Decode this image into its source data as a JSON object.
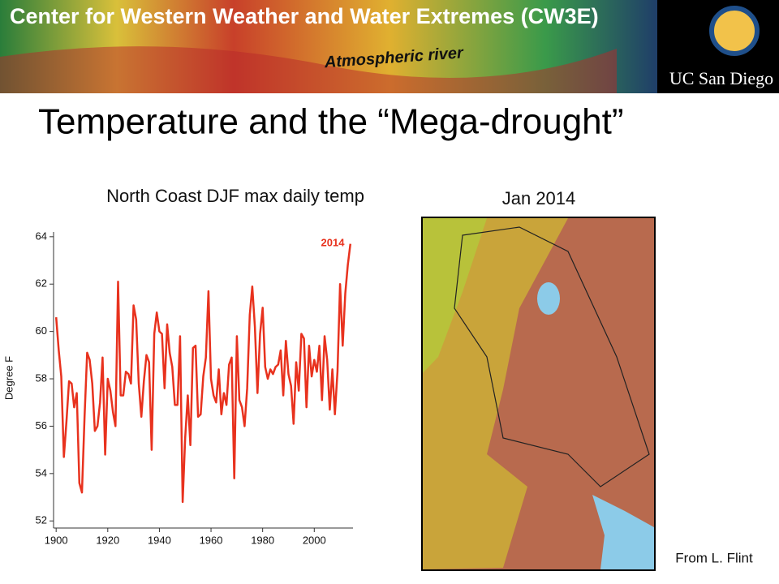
{
  "banner": {
    "title": "Center for Western Weather and Water Extremes (CW3E)",
    "label": "Atmospheric river",
    "logo": "UC San Diego"
  },
  "slide_title": "Temperature and the “Mega-drought”",
  "map_title": "Jan 2014",
  "credit": "From L. Flint",
  "chart_data": {
    "type": "line",
    "title": "North Coast DJF max daily temp",
    "y_label": "Degree F",
    "annotation": "2014",
    "x": [
      1900,
      1901,
      1902,
      1903,
      1904,
      1905,
      1906,
      1907,
      1908,
      1909,
      1910,
      1911,
      1912,
      1913,
      1914,
      1915,
      1916,
      1917,
      1918,
      1919,
      1920,
      1921,
      1922,
      1923,
      1924,
      1925,
      1926,
      1927,
      1928,
      1929,
      1930,
      1931,
      1932,
      1933,
      1934,
      1935,
      1936,
      1937,
      1938,
      1939,
      1940,
      1941,
      1942,
      1943,
      1944,
      1945,
      1946,
      1947,
      1948,
      1949,
      1950,
      1951,
      1952,
      1953,
      1954,
      1955,
      1956,
      1957,
      1958,
      1959,
      1960,
      1961,
      1962,
      1963,
      1964,
      1965,
      1966,
      1967,
      1968,
      1969,
      1970,
      1971,
      1972,
      1973,
      1974,
      1975,
      1976,
      1977,
      1978,
      1979,
      1980,
      1981,
      1982,
      1983,
      1984,
      1985,
      1986,
      1987,
      1988,
      1989,
      1990,
      1991,
      1992,
      1993,
      1994,
      1995,
      1996,
      1997,
      1998,
      1999,
      2000,
      2001,
      2002,
      2003,
      2004,
      2005,
      2006,
      2007,
      2008,
      2009,
      2010,
      2011,
      2012,
      2013,
      2014
    ],
    "values": [
      60.6,
      59.2,
      58.1,
      54.7,
      56.2,
      57.9,
      57.8,
      56.8,
      57.4,
      53.6,
      53.2,
      56.4,
      59.1,
      58.8,
      57.8,
      55.8,
      56.0,
      57.0,
      58.9,
      54.8,
      58.0,
      57.5,
      56.6,
      56.0,
      62.1,
      57.3,
      57.3,
      58.3,
      58.2,
      57.8,
      61.1,
      60.5,
      57.8,
      56.4,
      57.9,
      59.0,
      58.7,
      55.0,
      59.9,
      60.8,
      60.0,
      59.9,
      57.6,
      60.3,
      59.1,
      58.5,
      56.9,
      56.9,
      59.8,
      52.8,
      55.5,
      57.3,
      55.2,
      59.3,
      59.4,
      56.4,
      56.5,
      58.1,
      58.9,
      61.7,
      58.0,
      57.3,
      57.0,
      58.4,
      56.5,
      57.4,
      56.9,
      58.6,
      58.9,
      53.8,
      59.8,
      57.1,
      56.8,
      56.0,
      57.6,
      60.7,
      61.9,
      60.2,
      57.4,
      59.9,
      61.0,
      58.5,
      58.0,
      58.4,
      58.2,
      58.5,
      58.6,
      59.2,
      57.3,
      59.6,
      58.2,
      57.7,
      56.1,
      58.7,
      57.5,
      59.9,
      59.7,
      56.8,
      59.4,
      58.1,
      58.8,
      58.3,
      59.4,
      57.1,
      59.8,
      58.8,
      56.7,
      58.4,
      56.5,
      58.3,
      62.0,
      59.4,
      61.6,
      62.8,
      63.7
    ],
    "color": "#e8321e",
    "xlim": [
      1899,
      2015
    ],
    "xticks": [
      1900,
      1920,
      1940,
      1960,
      1980,
      2000
    ],
    "ylim": [
      51.7,
      64.2
    ],
    "yticks": [
      52,
      54,
      56,
      58,
      60,
      62,
      64
    ]
  }
}
